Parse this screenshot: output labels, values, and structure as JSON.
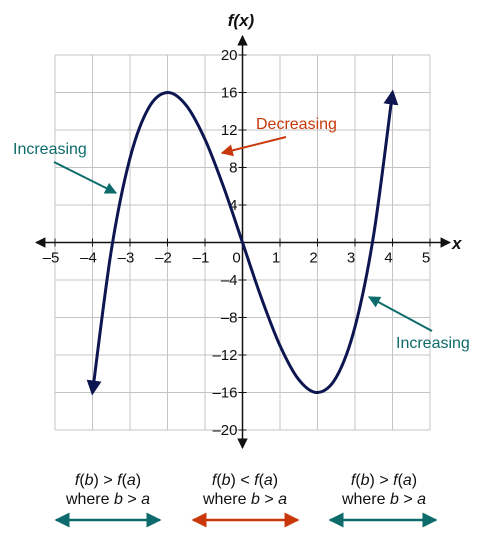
{
  "colors": {
    "curve": "#0d1650",
    "increasing": "#0e6b6b",
    "decreasing": "#c8380b",
    "grid": "#c4c4c4",
    "axis": "#111111"
  },
  "chart_data": {
    "type": "line",
    "function": "f(x) = x^3 - 12x",
    "x": [
      -4,
      -3.5,
      -3,
      -2.5,
      -2,
      -1.5,
      -1,
      -0.5,
      0,
      0.5,
      1,
      1.5,
      2,
      2.5,
      3,
      3.5,
      4
    ],
    "y": [
      -16,
      -0.875,
      9,
      14.375,
      16,
      14.625,
      11,
      5.875,
      0,
      -5.875,
      -11,
      -14.625,
      -16,
      -14.375,
      -9,
      0.875,
      16
    ],
    "xlim": [
      -5,
      5
    ],
    "ylim": [
      -20,
      20
    ],
    "grid": true,
    "xlabel": "x",
    "ylabel": "f(x)",
    "x_ticks": [
      -5,
      -4,
      -3,
      -2,
      -1,
      0,
      1,
      2,
      3,
      4,
      5
    ],
    "x_tick_labels": [
      "–5",
      "–4",
      "–3",
      "–2",
      "–1",
      "0",
      "1",
      "2",
      "3",
      "4",
      "5"
    ],
    "y_ticks": [
      20,
      16,
      12,
      8,
      4,
      -4,
      -8,
      -12,
      -16,
      -20
    ],
    "y_tick_labels": [
      "20",
      "16",
      "12",
      "8",
      "4",
      "–4",
      "–8",
      "–12",
      "–16",
      "–20"
    ],
    "annotations": [
      {
        "text": "Increasing",
        "color": "increasing",
        "points_to": [
          -3.3,
          5
        ]
      },
      {
        "text": "Decreasing",
        "color": "decreasing",
        "points_to": [
          -0.6,
          9.5
        ]
      },
      {
        "text": "Increasing",
        "color": "increasing",
        "points_to": [
          3.3,
          -5.5
        ]
      }
    ]
  },
  "conditions": [
    {
      "line1_a": "f",
      "line1_b": "(",
      "line1_c": "b",
      "line1_d": ") > ",
      "line1_e": "f",
      "line1_f": "(",
      "line1_g": "a",
      "line1_h": ")",
      "line2_a": "where ",
      "line2_b": "b",
      "line2_c": " > ",
      "line2_d": "a",
      "color": "increasing"
    },
    {
      "line1_a": "f",
      "line1_b": "(",
      "line1_c": "b",
      "line1_d": ") < ",
      "line1_e": "f",
      "line1_f": "(",
      "line1_g": "a",
      "line1_h": ")",
      "line2_a": "where ",
      "line2_b": "b",
      "line2_c": " > ",
      "line2_d": "a",
      "color": "decreasing"
    },
    {
      "line1_a": "f",
      "line1_b": "(",
      "line1_c": "b",
      "line1_d": ") > ",
      "line1_e": "f",
      "line1_f": "(",
      "line1_g": "a",
      "line1_h": ")",
      "line2_a": "where ",
      "line2_b": "b",
      "line2_c": " > ",
      "line2_d": "a",
      "color": "increasing"
    }
  ]
}
